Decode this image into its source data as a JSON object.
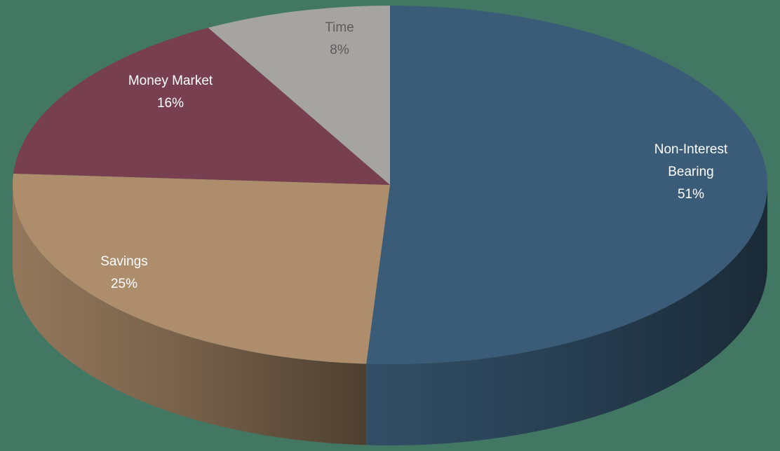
{
  "chart_data": {
    "type": "pie",
    "title": "",
    "background_color": "#417763",
    "slices": [
      {
        "name_lines": [
          "Non-Interest",
          "Bearing"
        ],
        "value": 51,
        "label_pct": "51%",
        "color": "#3A5C78",
        "label_color": "#FFFFFF"
      },
      {
        "name_lines": [
          "Savings"
        ],
        "value": 25,
        "label_pct": "25%",
        "color": "#AD8D6C",
        "label_color": "#FFFFFF"
      },
      {
        "name_lines": [
          "Money Market"
        ],
        "value": 16,
        "label_pct": "16%",
        "color": "#783F51",
        "label_color": "#FFFFFF"
      },
      {
        "name_lines": [
          "Time"
        ],
        "value": 8,
        "label_pct": "8%",
        "color": "#A5A4A0",
        "label_color": "#5C5C5C"
      }
    ]
  }
}
